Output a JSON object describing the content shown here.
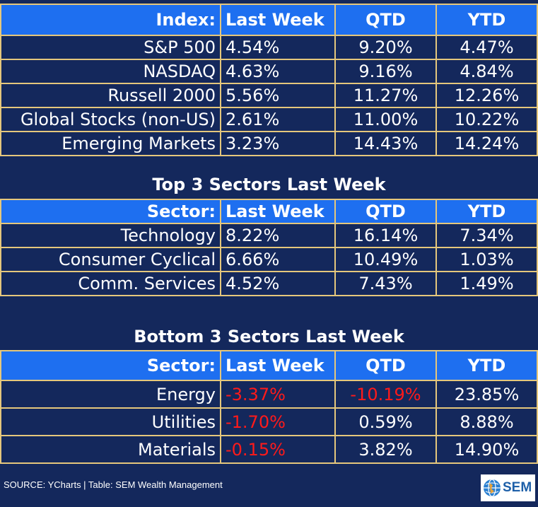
{
  "colors": {
    "background": "#14285c",
    "header": "#1e6ff0",
    "border": "#e5c77c",
    "negative": "#ff1a1a"
  },
  "index_table": {
    "headers": [
      "Index:",
      "Last Week",
      "QTD",
      "YTD"
    ],
    "rows": [
      [
        "S&P 500",
        "4.54%",
        "9.20%",
        "4.47%"
      ],
      [
        "NASDAQ",
        "4.63%",
        "9.16%",
        "4.84%"
      ],
      [
        "Russell 2000",
        "5.56%",
        "11.27%",
        "12.26%"
      ],
      [
        "Global Stocks (non-US)",
        "2.61%",
        "11.00%",
        "10.22%"
      ],
      [
        "Emerging Markets",
        "3.23%",
        "14.43%",
        "14.24%"
      ]
    ]
  },
  "top_sectors": {
    "title": "Top 3 Sectors Last Week",
    "headers": [
      "Sector:",
      "Last Week",
      "QTD",
      "YTD"
    ],
    "rows": [
      [
        "Technology",
        "8.22%",
        "16.14%",
        "7.34%"
      ],
      [
        "Consumer Cyclical",
        "6.66%",
        "10.49%",
        "1.03%"
      ],
      [
        "Comm. Services",
        "4.52%",
        "7.43%",
        "1.49%"
      ]
    ]
  },
  "bottom_sectors": {
    "title": "Bottom 3 Sectors Last Week",
    "headers": [
      "Sector:",
      "Last Week",
      "QTD",
      "YTD"
    ],
    "rows": [
      [
        "Energy",
        "-3.37%",
        "-10.19%",
        "23.85%"
      ],
      [
        "Utilities",
        "-1.70%",
        "0.59%",
        "8.88%"
      ],
      [
        "Materials",
        "-0.15%",
        "3.82%",
        "14.90%"
      ]
    ]
  },
  "footer": {
    "source": "SOURCE: YCharts | Table: SEM Wealth Management",
    "logo_text": "SEM",
    "logo_icon": "globe-icon"
  }
}
